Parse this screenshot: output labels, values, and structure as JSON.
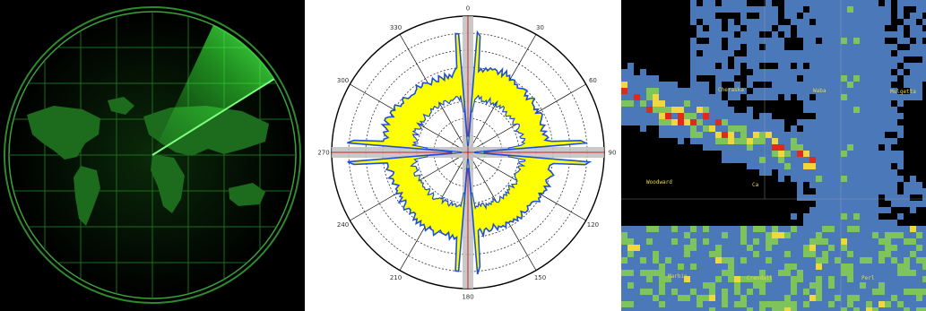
{
  "panels": [
    {
      "name": "radar-sweep-world-map",
      "colors": {
        "bg": "#000000",
        "grid": "#2f8a2f",
        "sweep": "#39ff39",
        "land": "#1d6b1d"
      }
    },
    {
      "name": "polar-antenna-pattern"
    },
    {
      "name": "weather-radar-reflectivity-map"
    }
  ],
  "polar": {
    "angle_labels": [
      "0",
      "30",
      "60",
      "90",
      "120",
      "150",
      "180",
      "210",
      "240",
      "270",
      "300",
      "330"
    ],
    "colors": {
      "envelope_fill": "#ffff00",
      "trace": "#1f4fd6",
      "axis_band": "#c0c0c0",
      "axis_line": "#d22222"
    }
  },
  "weather": {
    "city_labels": [
      "Cheraska",
      "Waba",
      "Mulgetta",
      "Woodward",
      "Ca",
      "Marbin",
      "Crendall",
      "Perl"
    ],
    "colors": {
      "bg": "#000000",
      "light": "#4a78b8",
      "moderate": "#7fc45a",
      "heavy": "#f2d640",
      "severe": "#e02a1a"
    }
  }
}
